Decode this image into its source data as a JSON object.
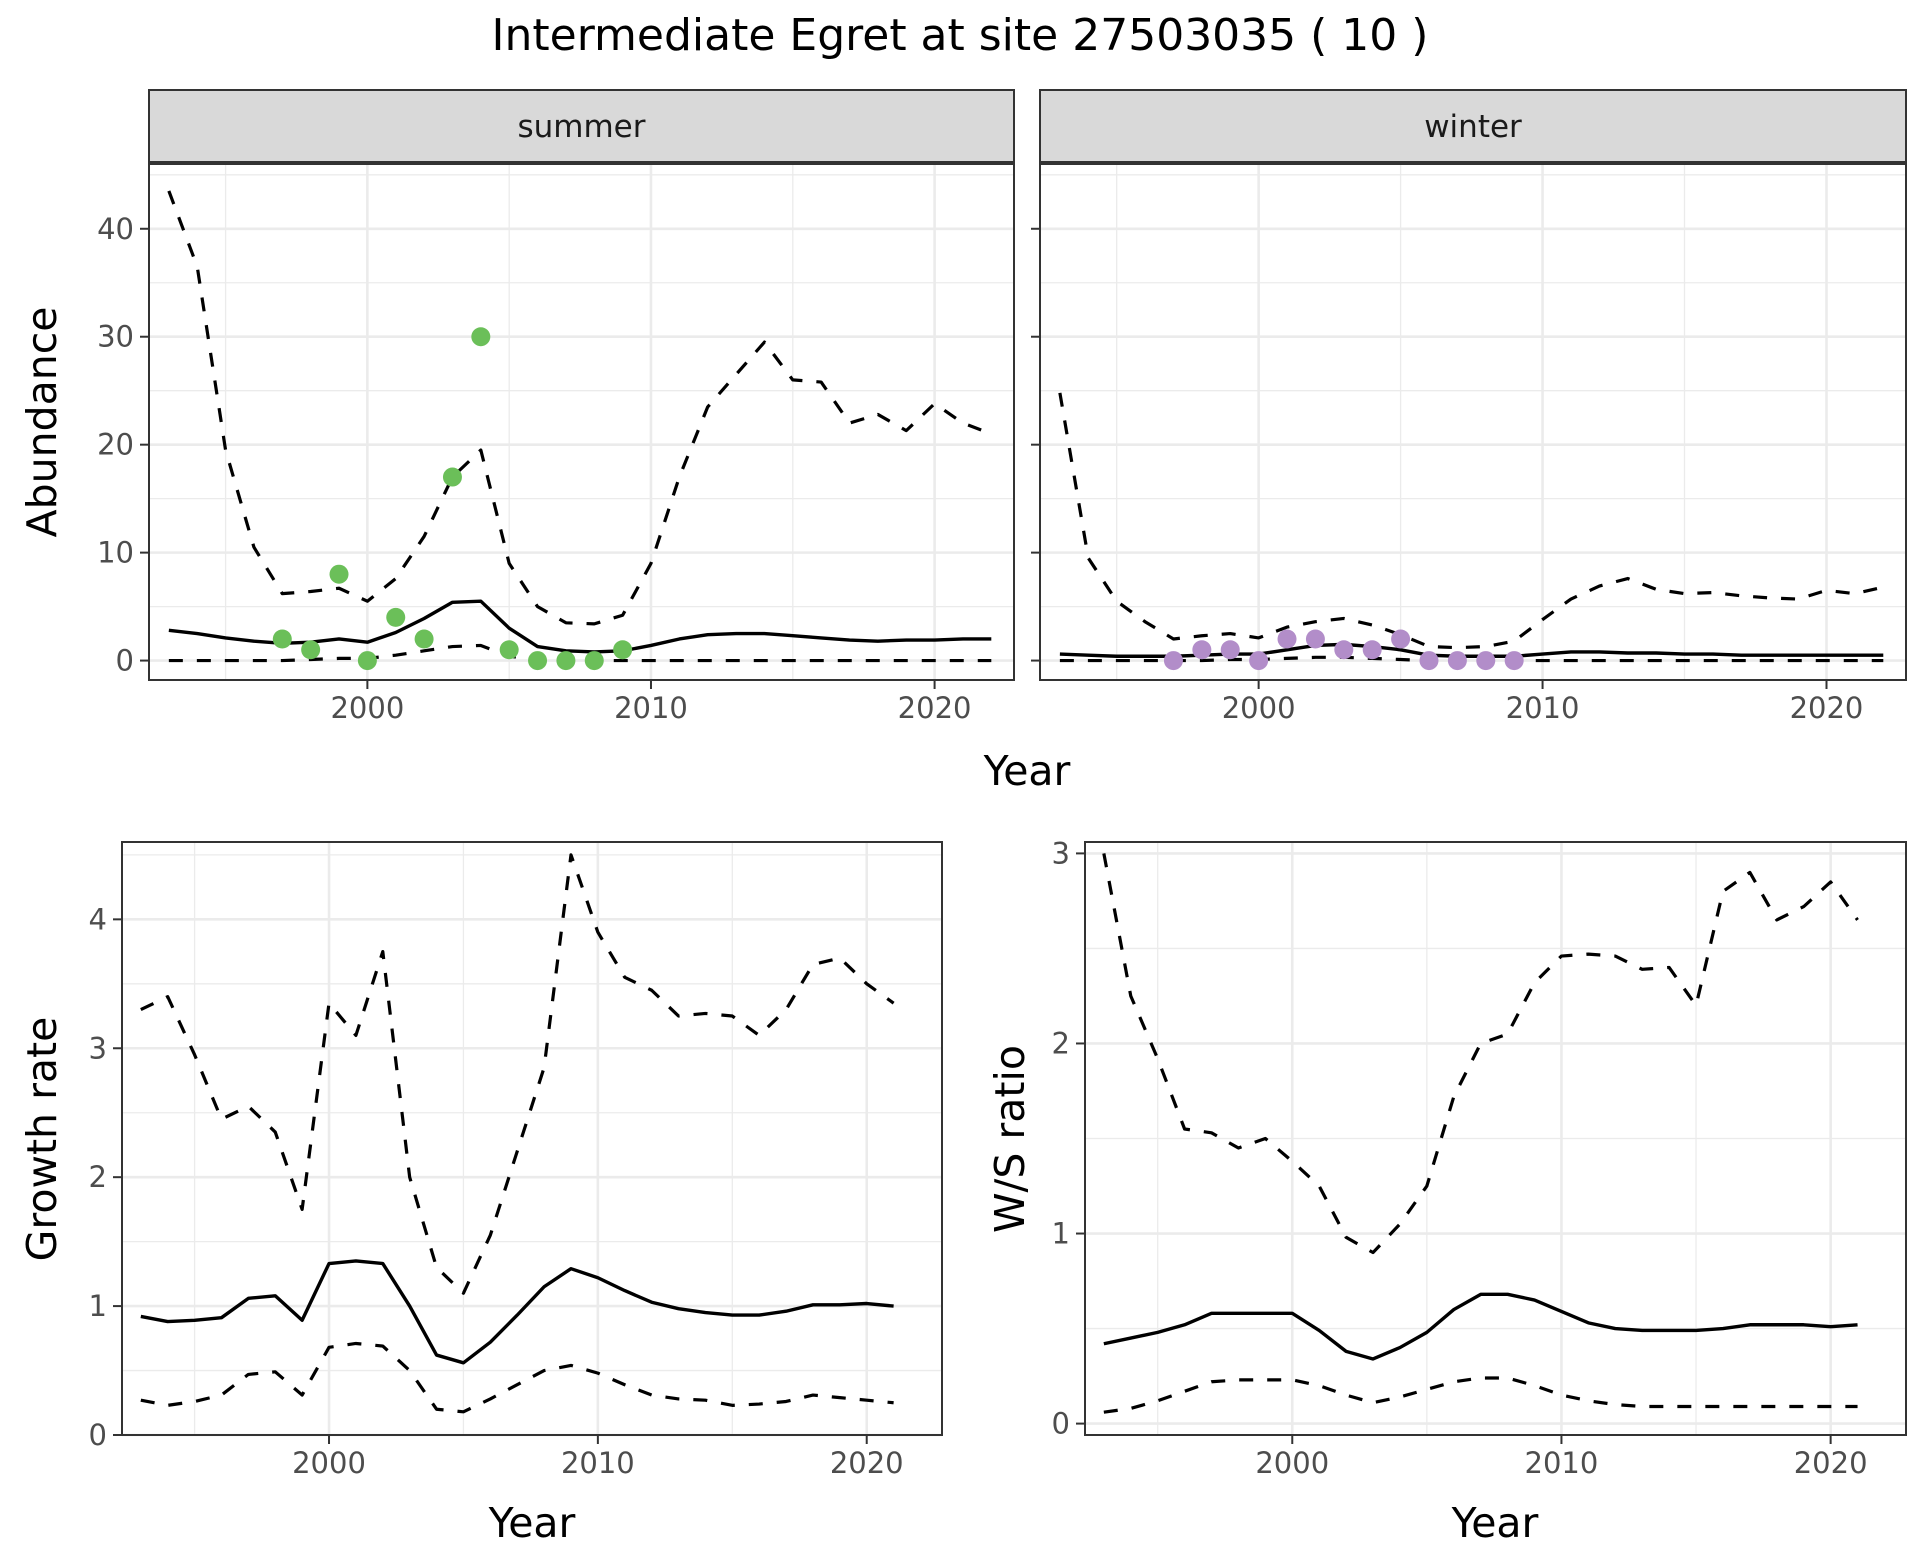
{
  "title": "Intermediate Egret at site 27503035 ( 10 )",
  "colors": {
    "summer_points": "#6bbf59",
    "winter_points": "#b28dc9"
  },
  "chart_data": [
    {
      "id": "abundance",
      "type": "line",
      "facets": [
        "summer",
        "winter"
      ],
      "xlabel": "Year",
      "ylabel": "Abundance",
      "xlim": [
        1992.3,
        2022.8
      ],
      "ylim": [
        -1.8,
        46
      ],
      "xticks": [
        2000,
        2010,
        2020
      ],
      "yticks": [
        0,
        10,
        20,
        30,
        40
      ],
      "summer": {
        "years": [
          1993,
          1994,
          1995,
          1996,
          1997,
          1998,
          1999,
          2000,
          2001,
          2002,
          2003,
          2004,
          2005,
          2006,
          2007,
          2008,
          2009,
          2010,
          2011,
          2012,
          2013,
          2014,
          2015,
          2016,
          2017,
          2018,
          2019,
          2020,
          2021,
          2022
        ],
        "fit": [
          2.8,
          2.5,
          2.1,
          1.8,
          1.6,
          1.7,
          2.0,
          1.7,
          2.6,
          3.9,
          5.4,
          5.5,
          3.0,
          1.3,
          0.9,
          0.8,
          0.9,
          1.4,
          2.0,
          2.4,
          2.5,
          2.5,
          2.3,
          2.1,
          1.9,
          1.8,
          1.9,
          1.9,
          2.0,
          2.0
        ],
        "upper": [
          43.5,
          36.5,
          19.5,
          10.5,
          6.2,
          6.4,
          6.7,
          5.5,
          7.6,
          11.5,
          17.0,
          19.5,
          9.0,
          5.0,
          3.5,
          3.4,
          4.2,
          9.0,
          17.0,
          23.5,
          26.5,
          29.5,
          26.0,
          25.8,
          22.0,
          22.8,
          21.3,
          23.8,
          22.0,
          21.0
        ],
        "lower": [
          0,
          0,
          0,
          0,
          0,
          0.1,
          0.2,
          0.2,
          0.5,
          0.9,
          1.3,
          1.4,
          0.4,
          0.1,
          0,
          0,
          0,
          0,
          0,
          0,
          0,
          0,
          0,
          0,
          0,
          0,
          0,
          0,
          0,
          0
        ],
        "obs_years": [
          1997,
          1998,
          1999,
          2000,
          2001,
          2002,
          2003,
          2004,
          2005,
          2006,
          2007,
          2008,
          2009
        ],
        "obs": [
          2,
          1,
          8,
          0,
          4,
          2,
          17,
          30,
          1,
          0,
          0,
          0,
          1
        ]
      },
      "winter": {
        "years": [
          1993,
          1994,
          1995,
          1996,
          1997,
          1998,
          1999,
          2000,
          2001,
          2002,
          2003,
          2004,
          2005,
          2006,
          2007,
          2008,
          2009,
          2010,
          2011,
          2012,
          2013,
          2014,
          2015,
          2016,
          2017,
          2018,
          2019,
          2020,
          2021,
          2022
        ],
        "fit": [
          0.6,
          0.5,
          0.4,
          0.4,
          0.4,
          0.5,
          0.6,
          0.6,
          1.0,
          1.4,
          1.5,
          1.3,
          1.0,
          0.5,
          0.4,
          0.4,
          0.4,
          0.6,
          0.8,
          0.8,
          0.7,
          0.7,
          0.6,
          0.6,
          0.5,
          0.5,
          0.5,
          0.5,
          0.5,
          0.5
        ],
        "upper": [
          24.8,
          9.5,
          5.5,
          3.6,
          2.0,
          2.3,
          2.5,
          2.1,
          3.1,
          3.6,
          3.9,
          3.3,
          2.4,
          1.3,
          1.2,
          1.3,
          1.8,
          3.8,
          5.7,
          6.9,
          7.6,
          6.6,
          6.2,
          6.3,
          6.0,
          5.8,
          5.7,
          6.5,
          6.2,
          6.8
        ],
        "lower": [
          0,
          0,
          0,
          0,
          0,
          0,
          0.1,
          0.1,
          0.2,
          0.3,
          0.3,
          0.2,
          0.1,
          0,
          0,
          0,
          0,
          0,
          0,
          0,
          0,
          0,
          0,
          0,
          0,
          0,
          0,
          0,
          0,
          0
        ],
        "obs_years": [
          1997,
          1998,
          1999,
          2000,
          2001,
          2002,
          2003,
          2004,
          2005,
          2006,
          2007,
          2008,
          2009
        ],
        "obs": [
          0,
          1,
          1,
          0,
          2,
          2,
          1,
          1,
          2,
          0,
          0,
          0,
          0
        ]
      }
    },
    {
      "id": "growth",
      "type": "line",
      "xlabel": "Year",
      "ylabel": "Growth rate",
      "xlim": [
        1992.3,
        2022.8
      ],
      "ylim": [
        0,
        4.6
      ],
      "xticks": [
        2000,
        2010,
        2020
      ],
      "yticks": [
        0,
        1,
        2,
        3,
        4
      ],
      "years": [
        1993,
        1994,
        1995,
        1996,
        1997,
        1998,
        1999,
        2000,
        2001,
        2002,
        2003,
        2004,
        2005,
        2006,
        2007,
        2008,
        2009,
        2010,
        2011,
        2012,
        2013,
        2014,
        2015,
        2016,
        2017,
        2018,
        2019,
        2020,
        2021
      ],
      "fit": [
        0.92,
        0.88,
        0.89,
        0.91,
        1.06,
        1.08,
        0.89,
        1.33,
        1.35,
        1.33,
        1.0,
        0.62,
        0.56,
        0.72,
        0.93,
        1.15,
        1.29,
        1.22,
        1.12,
        1.03,
        0.98,
        0.95,
        0.93,
        0.93,
        0.96,
        1.01,
        1.01,
        1.02,
        1.0
      ],
      "upper": [
        3.3,
        3.4,
        2.95,
        2.45,
        2.55,
        2.35,
        1.75,
        3.35,
        3.1,
        3.75,
        2.0,
        1.3,
        1.1,
        1.55,
        2.2,
        2.85,
        4.5,
        3.9,
        3.55,
        3.45,
        3.25,
        3.27,
        3.25,
        3.1,
        3.3,
        3.65,
        3.7,
        3.5,
        3.35
      ],
      "lower": [
        0.27,
        0.23,
        0.26,
        0.31,
        0.47,
        0.49,
        0.31,
        0.68,
        0.71,
        0.69,
        0.5,
        0.2,
        0.18,
        0.28,
        0.39,
        0.5,
        0.54,
        0.48,
        0.39,
        0.31,
        0.28,
        0.27,
        0.23,
        0.24,
        0.26,
        0.31,
        0.29,
        0.27,
        0.25
      ]
    },
    {
      "id": "ws_ratio",
      "type": "line",
      "xlabel": "Year",
      "ylabel": "W/S ratio",
      "xlim": [
        1992.3,
        2022.8
      ],
      "ylim": [
        -0.06,
        3.06
      ],
      "xticks": [
        2000,
        2010,
        2020
      ],
      "yticks": [
        0,
        1,
        2,
        3
      ],
      "years": [
        1993,
        1994,
        1995,
        1996,
        1997,
        1998,
        1999,
        2000,
        2001,
        2002,
        2003,
        2004,
        2005,
        2006,
        2007,
        2008,
        2009,
        2010,
        2011,
        2012,
        2013,
        2014,
        2015,
        2016,
        2017,
        2018,
        2019,
        2020,
        2021
      ],
      "fit": [
        0.42,
        0.45,
        0.48,
        0.52,
        0.58,
        0.58,
        0.58,
        0.58,
        0.49,
        0.38,
        0.34,
        0.4,
        0.48,
        0.6,
        0.68,
        0.68,
        0.65,
        0.59,
        0.53,
        0.5,
        0.49,
        0.49,
        0.49,
        0.5,
        0.52,
        0.52,
        0.52,
        0.51,
        0.52
      ],
      "upper": [
        3.0,
        2.25,
        1.92,
        1.55,
        1.53,
        1.45,
        1.5,
        1.38,
        1.25,
        0.98,
        0.9,
        1.05,
        1.25,
        1.72,
        2.0,
        2.05,
        2.32,
        2.46,
        2.47,
        2.46,
        2.39,
        2.4,
        2.2,
        2.8,
        2.9,
        2.65,
        2.72,
        2.85,
        2.65
      ],
      "lower": [
        0.06,
        0.08,
        0.12,
        0.17,
        0.22,
        0.23,
        0.23,
        0.23,
        0.2,
        0.15,
        0.11,
        0.14,
        0.18,
        0.22,
        0.24,
        0.24,
        0.2,
        0.15,
        0.12,
        0.1,
        0.09,
        0.09,
        0.09,
        0.09,
        0.09,
        0.09,
        0.09,
        0.09,
        0.09
      ]
    }
  ]
}
